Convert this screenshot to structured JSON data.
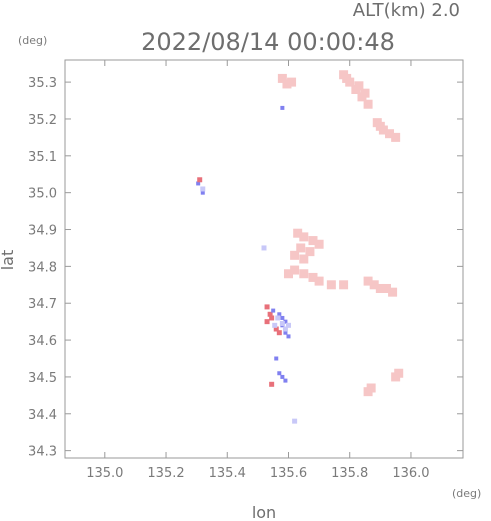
{
  "chart_data": {
    "type": "scatter",
    "title": "2022/08/14 00:00:48",
    "subtitle": "ALT(km) 2.0",
    "xlabel": "lon",
    "ylabel": "lat",
    "x_unit": "(deg)",
    "y_unit": "(deg)",
    "xlim": [
      134.87,
      136.17
    ],
    "ylim": [
      34.28,
      35.36
    ],
    "x_ticks": [
      135.0,
      135.2,
      135.4,
      135.6,
      135.8,
      136.0
    ],
    "x_tick_labels": [
      "135.0",
      "135.2",
      "135.4",
      "135.6",
      "135.8",
      "136.0"
    ],
    "y_ticks": [
      34.3,
      34.4,
      34.5,
      34.6,
      34.7,
      34.8,
      34.9,
      35.0,
      35.1,
      35.2,
      35.3
    ],
    "y_tick_labels": [
      "34.3",
      "34.4",
      "34.5",
      "34.6",
      "34.7",
      "34.8",
      "34.9",
      "35.0",
      "35.1",
      "35.2",
      "35.3"
    ],
    "grid": false,
    "colors": {
      "pink": "#f6c6c6",
      "light_pink": "#fbdede",
      "red": "#e8707a",
      "blue": "#8080f0",
      "light_blue": "#c8c8f8"
    },
    "regions": [
      {
        "type": "pink",
        "points": [
          [
            135.58,
            35.31
          ],
          [
            135.61,
            35.3
          ],
          [
            135.595,
            35.295
          ]
        ]
      },
      {
        "type": "pink",
        "points": [
          [
            135.78,
            35.32
          ],
          [
            135.8,
            35.3
          ],
          [
            135.82,
            35.28
          ],
          [
            135.84,
            35.26
          ],
          [
            135.86,
            35.24
          ],
          [
            135.85,
            35.27
          ],
          [
            135.83,
            35.29
          ],
          [
            135.79,
            35.31
          ]
        ]
      },
      {
        "type": "pink",
        "points": [
          [
            135.89,
            35.19
          ],
          [
            135.91,
            35.17
          ],
          [
            135.93,
            35.16
          ],
          [
            135.95,
            35.15
          ],
          [
            135.9,
            35.18
          ]
        ]
      },
      {
        "type": "blue",
        "points": [
          [
            135.58,
            35.23
          ],
          [
            135.305,
            35.025
          ],
          [
            135.32,
            35.0
          ]
        ]
      },
      {
        "type": "pink",
        "points": [
          [
            135.63,
            34.89
          ],
          [
            135.65,
            34.88
          ],
          [
            135.68,
            34.87
          ],
          [
            135.7,
            34.86
          ],
          [
            135.64,
            34.85
          ],
          [
            135.67,
            34.84
          ],
          [
            135.62,
            34.83
          ],
          [
            135.65,
            34.82
          ]
        ]
      },
      {
        "type": "pink",
        "points": [
          [
            135.62,
            34.79
          ],
          [
            135.65,
            34.78
          ],
          [
            135.68,
            34.77
          ],
          [
            135.7,
            34.76
          ],
          [
            135.74,
            34.75
          ],
          [
            135.78,
            34.75
          ],
          [
            135.6,
            34.78
          ]
        ]
      },
      {
        "type": "pink",
        "points": [
          [
            135.86,
            34.76
          ],
          [
            135.88,
            34.75
          ],
          [
            135.9,
            34.74
          ],
          [
            135.92,
            34.74
          ],
          [
            135.94,
            34.73
          ]
        ]
      },
      {
        "type": "red",
        "points": [
          [
            135.53,
            34.69
          ],
          [
            135.54,
            34.67
          ],
          [
            135.545,
            34.66
          ],
          [
            135.53,
            34.65
          ],
          [
            135.56,
            34.63
          ],
          [
            135.57,
            34.62
          ],
          [
            135.31,
            35.035
          ],
          [
            135.545,
            34.48
          ]
        ]
      },
      {
        "type": "blue",
        "points": [
          [
            135.55,
            34.68
          ],
          [
            135.57,
            34.67
          ],
          [
            135.58,
            34.66
          ],
          [
            135.59,
            34.65
          ],
          [
            135.58,
            34.64
          ],
          [
            135.59,
            34.62
          ],
          [
            135.6,
            34.61
          ],
          [
            135.56,
            34.55
          ],
          [
            135.57,
            34.51
          ],
          [
            135.58,
            34.5
          ],
          [
            135.59,
            34.49
          ]
        ]
      },
      {
        "type": "light_blue",
        "points": [
          [
            135.565,
            34.66
          ],
          [
            135.58,
            34.645
          ],
          [
            135.59,
            34.63
          ],
          [
            135.555,
            34.64
          ],
          [
            135.6,
            34.64
          ],
          [
            135.32,
            35.01
          ]
        ]
      },
      {
        "type": "pink",
        "points": [
          [
            135.86,
            34.46
          ],
          [
            135.87,
            34.47
          ],
          [
            135.95,
            34.5
          ],
          [
            135.96,
            34.51
          ]
        ]
      },
      {
        "type": "light_blue",
        "points": [
          [
            135.62,
            34.38
          ],
          [
            135.52,
            34.85
          ]
        ]
      }
    ]
  }
}
